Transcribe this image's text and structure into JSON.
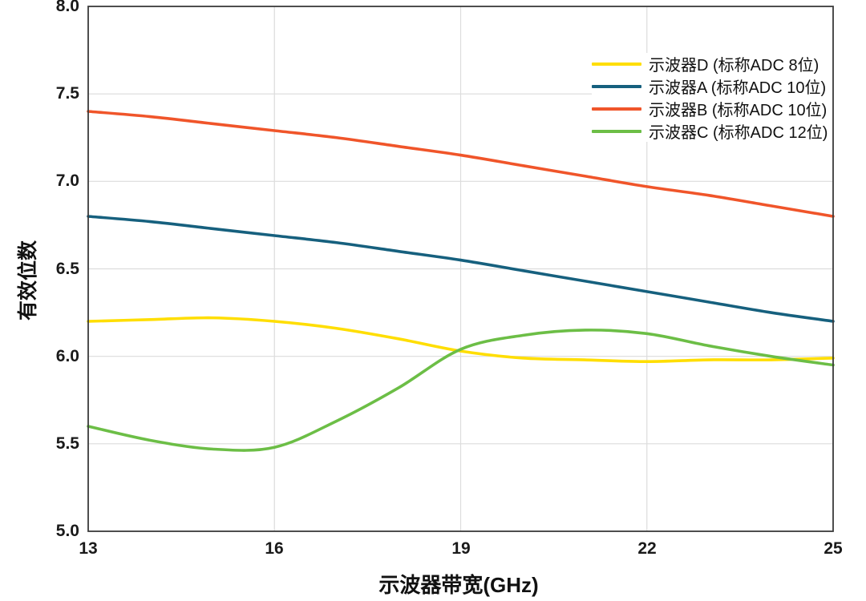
{
  "chart_data": {
    "type": "line",
    "title": "",
    "xlabel": "示波器带宽(GHz)",
    "ylabel": "有效位数",
    "xlim": [
      13,
      25
    ],
    "ylim": [
      5.0,
      8.0
    ],
    "xticks": [
      13,
      16,
      19,
      22,
      25
    ],
    "yticks": [
      5.0,
      5.5,
      6.0,
      6.5,
      7.0,
      7.5,
      8.0
    ],
    "grid": true,
    "legend_position": "top-right",
    "x": [
      13,
      14,
      15,
      16,
      17,
      18,
      19,
      20,
      21,
      22,
      23,
      24,
      25
    ],
    "series": [
      {
        "key": "scope-d",
        "name": "示波器D (标称ADC 8位)",
        "color": "#FFDE00",
        "values": [
          6.2,
          6.21,
          6.22,
          6.2,
          6.16,
          6.1,
          6.03,
          5.99,
          5.98,
          5.97,
          5.98,
          5.98,
          5.99
        ]
      },
      {
        "key": "scope-a",
        "name": "示波器A (标称ADC 10位)",
        "color": "#16607E",
        "values": [
          6.8,
          6.77,
          6.73,
          6.69,
          6.65,
          6.6,
          6.55,
          6.49,
          6.43,
          6.37,
          6.31,
          6.25,
          6.2
        ]
      },
      {
        "key": "scope-b",
        "name": "示波器B (标称ADC 10位)",
        "color": "#F0552A",
        "values": [
          7.4,
          7.37,
          7.33,
          7.29,
          7.25,
          7.2,
          7.15,
          7.09,
          7.03,
          6.97,
          6.92,
          6.86,
          6.8
        ]
      },
      {
        "key": "scope-c",
        "name": "示波器C (标称ADC 12位)",
        "color": "#6CBE46",
        "values": [
          5.6,
          5.52,
          5.47,
          5.48,
          5.63,
          5.82,
          6.04,
          6.12,
          6.15,
          6.13,
          6.06,
          6.0,
          5.95
        ]
      }
    ]
  },
  "colors": {
    "background": "#FFFFFF",
    "grid": "#DCDCDC",
    "axis_border": "#3B3B3B",
    "tick_text": "#1A1A1A",
    "label_text": "#111111"
  }
}
